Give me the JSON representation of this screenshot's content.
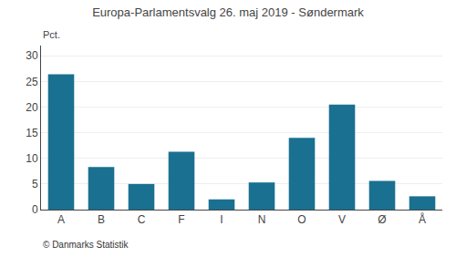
{
  "chart_data": {
    "type": "bar",
    "title": "Europa-Parlamentsvalg 26. maj 2019 - Søndermark",
    "categories": [
      "A",
      "B",
      "C",
      "F",
      "I",
      "N",
      "O",
      "V",
      "Ø",
      "Å"
    ],
    "values": [
      26.4,
      8.3,
      5.0,
      11.3,
      2.0,
      5.3,
      14.0,
      20.5,
      5.6,
      2.6
    ],
    "color": "#1a7090",
    "ylabel": "Pct.",
    "ylim": [
      0,
      32
    ],
    "yticks": [
      0,
      5,
      10,
      15,
      20,
      25,
      30
    ],
    "grid": true,
    "annotations": [
      "© Danmarks Statistik"
    ]
  }
}
